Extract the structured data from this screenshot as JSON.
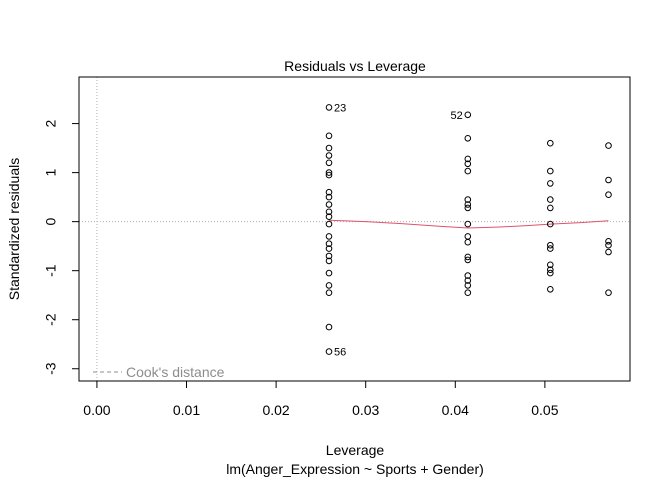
{
  "chart_data": {
    "type": "scatter",
    "title": "Residuals vs Leverage",
    "xlabel": "Leverage",
    "sublabel": "lm(Anger_Expression ~ Sports + Gender)",
    "ylabel": "Standardized residuals",
    "xlim": [
      -0.002,
      0.0595
    ],
    "ylim": [
      -3.25,
      2.95
    ],
    "xticks": [
      0.0,
      0.01,
      0.02,
      0.03,
      0.04,
      0.05
    ],
    "xtick_labels": [
      "0.00",
      "0.01",
      "0.02",
      "0.03",
      "0.04",
      "0.05"
    ],
    "yticks": [
      -3,
      -2,
      -1,
      0,
      1,
      2
    ],
    "ytick_labels": [
      "-3",
      "-2",
      "-1",
      "0",
      "1",
      "2"
    ],
    "reference_lines": {
      "h": 0,
      "v": 0,
      "style": "dotted",
      "color": "#b3b3b3"
    },
    "points": [
      {
        "x": 0.0259,
        "y": 2.33,
        "label": "23"
      },
      {
        "x": 0.0259,
        "y": 1.75
      },
      {
        "x": 0.0259,
        "y": 1.5
      },
      {
        "x": 0.0259,
        "y": 1.35
      },
      {
        "x": 0.0259,
        "y": 1.2
      },
      {
        "x": 0.0259,
        "y": 1.0
      },
      {
        "x": 0.0259,
        "y": 0.95
      },
      {
        "x": 0.0259,
        "y": 0.6
      },
      {
        "x": 0.0259,
        "y": 0.5
      },
      {
        "x": 0.0259,
        "y": 0.35
      },
      {
        "x": 0.0259,
        "y": 0.2
      },
      {
        "x": 0.0259,
        "y": 0.1
      },
      {
        "x": 0.0259,
        "y": -0.05
      },
      {
        "x": 0.0259,
        "y": -0.3
      },
      {
        "x": 0.0259,
        "y": -0.45
      },
      {
        "x": 0.0259,
        "y": -0.55
      },
      {
        "x": 0.0259,
        "y": -0.7
      },
      {
        "x": 0.0259,
        "y": -0.8
      },
      {
        "x": 0.0259,
        "y": -1.05
      },
      {
        "x": 0.0259,
        "y": -1.3
      },
      {
        "x": 0.0259,
        "y": -1.45
      },
      {
        "x": 0.0259,
        "y": -2.15
      },
      {
        "x": 0.0259,
        "y": -2.65,
        "label": "56"
      },
      {
        "x": 0.0414,
        "y": 2.18,
        "label": "52"
      },
      {
        "x": 0.0414,
        "y": 1.7
      },
      {
        "x": 0.0414,
        "y": 1.28
      },
      {
        "x": 0.0414,
        "y": 1.18
      },
      {
        "x": 0.0414,
        "y": 1.03
      },
      {
        "x": 0.0414,
        "y": 0.45
      },
      {
        "x": 0.0414,
        "y": 0.35
      },
      {
        "x": 0.0414,
        "y": 0.28
      },
      {
        "x": 0.0414,
        "y": -0.05
      },
      {
        "x": 0.0414,
        "y": -0.3
      },
      {
        "x": 0.0414,
        "y": -0.42
      },
      {
        "x": 0.0414,
        "y": -0.72
      },
      {
        "x": 0.0414,
        "y": -0.78
      },
      {
        "x": 0.0414,
        "y": -1.1
      },
      {
        "x": 0.0414,
        "y": -1.2
      },
      {
        "x": 0.0414,
        "y": -1.3
      },
      {
        "x": 0.0414,
        "y": -1.45
      },
      {
        "x": 0.0506,
        "y": 1.6
      },
      {
        "x": 0.0506,
        "y": 1.03
      },
      {
        "x": 0.0506,
        "y": 0.78
      },
      {
        "x": 0.0506,
        "y": 0.45
      },
      {
        "x": 0.0506,
        "y": 0.28
      },
      {
        "x": 0.0506,
        "y": -0.05
      },
      {
        "x": 0.0506,
        "y": -0.48
      },
      {
        "x": 0.0506,
        "y": -0.55
      },
      {
        "x": 0.0506,
        "y": -0.88
      },
      {
        "x": 0.0506,
        "y": -0.98
      },
      {
        "x": 0.0506,
        "y": -1.05
      },
      {
        "x": 0.0506,
        "y": -1.38
      },
      {
        "x": 0.0571,
        "y": 1.55
      },
      {
        "x": 0.0571,
        "y": 0.85
      },
      {
        "x": 0.0571,
        "y": 0.55
      },
      {
        "x": 0.0571,
        "y": -0.4
      },
      {
        "x": 0.0571,
        "y": -0.48
      },
      {
        "x": 0.0571,
        "y": -0.62
      },
      {
        "x": 0.0571,
        "y": -1.45
      }
    ],
    "smooth_line": {
      "color": "#df536b",
      "x": [
        0.0259,
        0.03,
        0.034,
        0.038,
        0.0414,
        0.045,
        0.048,
        0.0506,
        0.054,
        0.0571
      ],
      "y": [
        0.03,
        0.0,
        -0.04,
        -0.09,
        -0.13,
        -0.11,
        -0.08,
        -0.05,
        -0.02,
        0.02
      ]
    },
    "legend": {
      "text": "Cook's distance",
      "style": "dashed",
      "position": "bottom-left"
    }
  }
}
